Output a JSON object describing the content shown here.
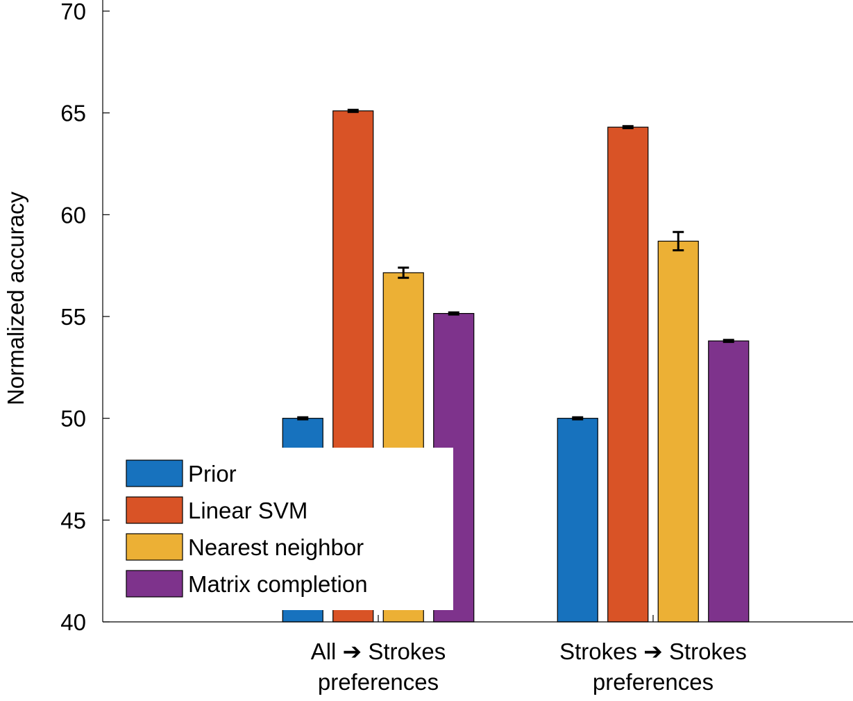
{
  "chart_data": {
    "type": "bar",
    "title": "",
    "xlabel": "",
    "ylabel": "Normalized accuracy",
    "ylim": [
      40,
      70
    ],
    "yticks": [
      40,
      45,
      50,
      55,
      60,
      65,
      70
    ],
    "grid": false,
    "legend_position": "bottom-left",
    "categories": [
      [
        "All ➔ Strokes",
        "preferences"
      ],
      [
        "Strokes ➔ Strokes",
        "preferences"
      ]
    ],
    "series": [
      {
        "name": "Prior",
        "color": "#1772BE",
        "values": [
          50.0,
          50.0
        ],
        "errors": [
          0.05,
          0.05
        ]
      },
      {
        "name": "Linear SVM",
        "color": "#D95326",
        "values": [
          65.1,
          64.3
        ],
        "errors": [
          0.05,
          0.05
        ]
      },
      {
        "name": "Nearest neighbor",
        "color": "#ECB035",
        "values": [
          57.15,
          58.7
        ],
        "errors": [
          0.25,
          0.45
        ]
      },
      {
        "name": "Matrix completion",
        "color": "#7E338C",
        "values": [
          55.15,
          53.8
        ],
        "errors": [
          0.05,
          0.05
        ]
      }
    ]
  }
}
